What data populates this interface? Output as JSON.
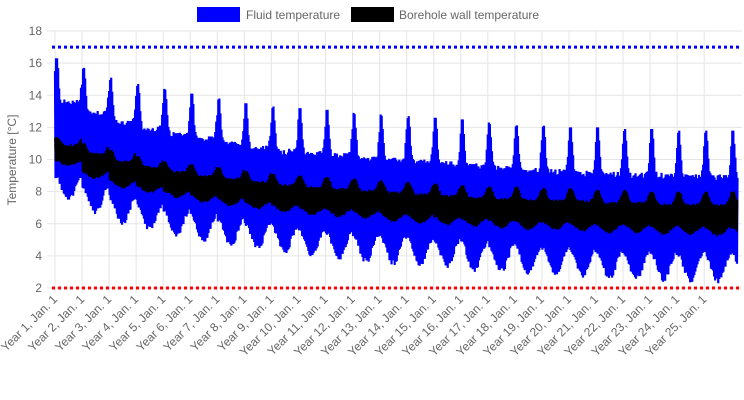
{
  "chart_data": {
    "type": "line",
    "title": "",
    "xlabel": "",
    "ylabel": "Temperature [°C]",
    "ylim": [
      2,
      18
    ],
    "yticks": [
      2,
      4,
      6,
      8,
      10,
      12,
      14,
      16,
      18
    ],
    "grid": true,
    "legend_position": "top",
    "x_categories": [
      "Year 1, Jan. 1",
      "Year 2, Jan. 1",
      "Year 3, Jan. 1",
      "Year 4, Jan. 1",
      "Year 5, Jan. 1",
      "Year 6, Jan. 1",
      "Year 7, Jan. 1",
      "Year 8, Jan. 1",
      "Year 9, Jan. 1",
      "Year 10, Jan. 1",
      "Year 11, Jan. 1",
      "Year 12, Jan. 1",
      "Year 13, Jan. 1",
      "Year 14, Jan. 1",
      "Year 15, Jan. 1",
      "Year 16, Jan. 1",
      "Year 17, Jan. 1",
      "Year 18, Jan. 1",
      "Year 19, Jan. 1",
      "Year 20, Jan. 1",
      "Year 21, Jan. 1",
      "Year 22, Jan. 1",
      "Year 23, Jan. 1",
      "Year 24, Jan. 1",
      "Year 25, Jan. 1"
    ],
    "series": [
      {
        "name": "Fluid temperature",
        "color": "#0000ff",
        "annual_peak_max": [
          16.3,
          15.7,
          15.1,
          14.7,
          14.4,
          14.1,
          13.8,
          13.5,
          13.3,
          13.2,
          13.1,
          12.9,
          12.8,
          12.7,
          12.6,
          12.5,
          12.3,
          12.2,
          12.1,
          12.0,
          12.0,
          11.9,
          11.9,
          11.8,
          11.8
        ],
        "annual_min": [
          7.2,
          6.5,
          5.8,
          5.4,
          5.0,
          4.7,
          4.4,
          4.2,
          4.0,
          3.8,
          3.6,
          3.4,
          3.3,
          3.2,
          3.1,
          2.9,
          2.8,
          2.7,
          2.6,
          2.5,
          2.4,
          2.3,
          2.3,
          2.2,
          2.2
        ]
      },
      {
        "name": "Borehole wall temperature",
        "color": "#000000",
        "annual_peak_max": [
          11.4,
          11.0,
          10.6,
          10.2,
          9.9,
          9.7,
          9.5,
          9.3,
          9.1,
          9.0,
          8.9,
          8.8,
          8.7,
          8.6,
          8.5,
          8.4,
          8.3,
          8.3,
          8.2,
          8.2,
          8.1,
          8.1,
          8.0,
          8.0,
          8.0
        ],
        "annual_min": [
          9.6,
          8.8,
          8.2,
          7.9,
          7.6,
          7.3,
          7.1,
          6.9,
          6.7,
          6.5,
          6.4,
          6.3,
          6.1,
          6.0,
          5.9,
          5.8,
          5.7,
          5.6,
          5.6,
          5.5,
          5.4,
          5.4,
          5.3,
          5.3,
          5.2
        ]
      }
    ],
    "thresholds": [
      {
        "value": 17,
        "color": "#0000ff",
        "style": "dotted"
      },
      {
        "value": 2,
        "color": "#ff0000",
        "style": "dotted"
      }
    ]
  }
}
